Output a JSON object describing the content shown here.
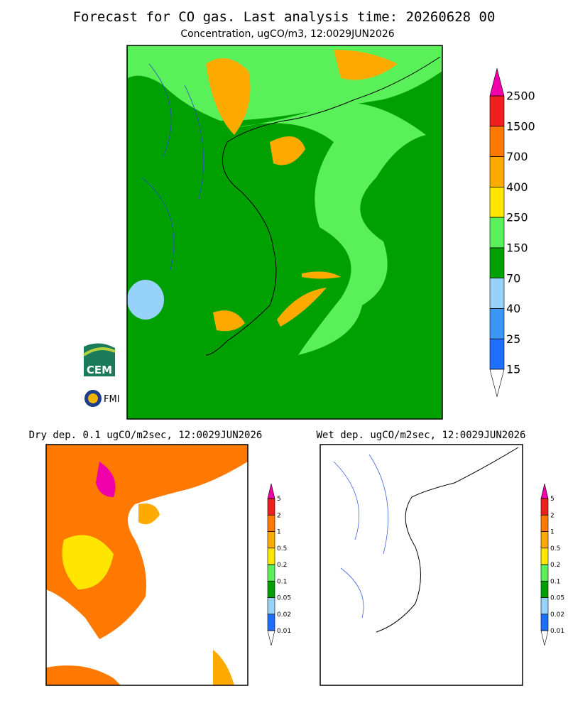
{
  "title": "Forecast for CO gas. Last analysis time: 20260628 00",
  "main": {
    "subtitle": "Concentration, ugCO/m3, 12:0029JUN2026",
    "colorbar": {
      "levels": [
        15,
        25,
        40,
        70,
        150,
        250,
        400,
        700,
        1500,
        2500
      ],
      "colors": [
        "#1e6eff",
        "#3c96f5",
        "#96d2fa",
        "#00a000",
        "#5af05a",
        "#ffe600",
        "#ffaa00",
        "#ff7800",
        "#f01e1e"
      ],
      "over_color": "#f000aa"
    }
  },
  "dry": {
    "subtitle": "Dry dep. 0.1 ugCO/m2sec, 12:0029JUN2026",
    "colorbar": {
      "levels": [
        0.01,
        0.02,
        0.05,
        0.1,
        0.2,
        0.5,
        1,
        2,
        5
      ],
      "colors": [
        "#1e6eff",
        "#96d2fa",
        "#00a000",
        "#5af05a",
        "#ffe600",
        "#ffaa00",
        "#ff7800",
        "#f01e1e"
      ],
      "over_color": "#f000aa"
    }
  },
  "wet": {
    "subtitle": "Wet dep. ugCO/m2sec, 12:0029JUN2026",
    "colorbar": {
      "levels": [
        0.01,
        0.02,
        0.05,
        0.1,
        0.2,
        0.5,
        1,
        2,
        5
      ],
      "colors": [
        "#1e6eff",
        "#96d2fa",
        "#00a000",
        "#5af05a",
        "#ffe600",
        "#ffaa00",
        "#ff7800",
        "#f01e1e"
      ],
      "over_color": "#f000aa"
    }
  },
  "logos": {
    "cem": "CEM",
    "fmi": "FMI"
  }
}
